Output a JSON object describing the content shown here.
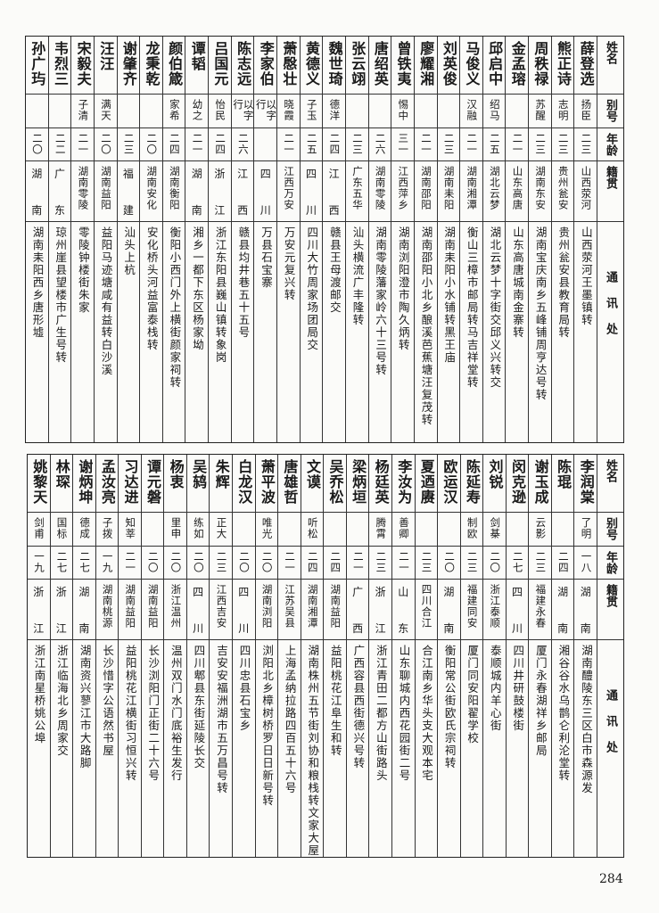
{
  "headers": {
    "name": "姓名",
    "alias": "别号",
    "age": "年龄",
    "native": "籍贯",
    "address": "通讯处"
  },
  "page_number": "284",
  "top_table": [
    {
      "name": "薛登选",
      "alias": "扬臣",
      "age": "二三",
      "native": "山西荥河",
      "address": "山西荥河王墨镇转"
    },
    {
      "name": "熊正诗",
      "alias": "志明",
      "age": "二三",
      "native": "贵州瓮安",
      "address": "贵州瓮安县教育局转"
    },
    {
      "name": "周秩禄",
      "alias": "苏醒",
      "age": "二三",
      "native": "湖南东安",
      "address": "湖南宝庆南乡五峰铺周亨达号转"
    },
    {
      "name": "金孟瑢",
      "alias": "",
      "age": "二一",
      "native": "山东高唐",
      "address": "山东高唐城南金寨转"
    },
    {
      "name": "邱启中",
      "alias": "绍马",
      "age": "二五",
      "native": "湖北云梦",
      "address": "湖北云梦十字街交邱义兴转交"
    },
    {
      "name": "马俊义",
      "alias": "汉融",
      "age": "二一",
      "native": "湖南湘潭",
      "address": "衡山三樟市邮局转马吉祥堂转"
    },
    {
      "name": "刘英俊",
      "alias": "",
      "age": "二三",
      "native": "湖南耒阳",
      "address": "湖南耒阳小水铺转黑王庙"
    },
    {
      "name": "廖耀湘",
      "alias": "",
      "age": "二一",
      "native": "湖南邵阳",
      "address": "湖南邵阳小北乡酿溪芭蕉塘汪复茂转"
    },
    {
      "name": "曾铁夷",
      "alias": "惕中",
      "age": "三一",
      "native": "江西萍乡",
      "address": "湖南浏阳澄市陶久炳转"
    },
    {
      "name": "唐绍英",
      "alias": "",
      "age": "二六",
      "native": "湖南零陵",
      "address": "湖南零陵藩家岭六十三号转"
    },
    {
      "name": "张云翊",
      "alias": "",
      "age": "二三",
      "native": "广东五华",
      "address": "汕头横流广丰隆转"
    },
    {
      "name": "魏世琦",
      "alias": "德洋",
      "age": "二四",
      "native": "江西",
      "address": "赣县王母渡邮交"
    },
    {
      "name": "黄德义",
      "alias": "子玉",
      "age": "二五",
      "native": "四川",
      "address": "四川大竹周家场团局交"
    },
    {
      "name": "萧慇壮",
      "alias": "晓霞",
      "age": "二一",
      "native": "江西万安",
      "address": "万安元复兴转"
    },
    {
      "name": "李家伯",
      "alias": "以字行",
      "age": "",
      "native": "四川",
      "address": "万县石宝寨"
    },
    {
      "name": "陈志远",
      "alias": "以字行",
      "age": "二六",
      "native": "江西",
      "address": "赣县均井巷五十五号"
    },
    {
      "name": "吕国元",
      "alias": "怡民",
      "age": "二四",
      "native": "浙江",
      "address": "浙江东阳县巍山镇转象岗"
    },
    {
      "name": "谭韬",
      "alias": "幼之",
      "age": "二一",
      "native": "湖南",
      "address": "湘乡一都下东区杨家坳"
    },
    {
      "name": "颜伯箴",
      "alias": "家希",
      "age": "二四",
      "native": "湖南衡阳",
      "address": "衡阳小西门外上横街颜家祠转"
    },
    {
      "name": "龙秉乾",
      "alias": "",
      "age": "二〇",
      "native": "湖南安化",
      "address": "安化桥头河益富泰栈转"
    },
    {
      "name": "谢肇齐",
      "alias": "",
      "age": "二三",
      "native": "福建",
      "address": "汕头上杭"
    },
    {
      "name": "汪汪",
      "alias": "满天",
      "age": "二〇",
      "native": "湖南益阳",
      "address": "益阳马迹塘咸有益转白沙溪"
    },
    {
      "name": "宋毅夫",
      "alias": "子清",
      "age": "二一",
      "native": "湖南零陵",
      "address": "零陵钟楼街朱家"
    },
    {
      "name": "韦烈三",
      "alias": "",
      "age": "二二",
      "native": "广东",
      "address": "琼州崖县望楼市广生号转"
    },
    {
      "name": "孙广玙",
      "alias": "",
      "age": "二〇",
      "native": "湖南",
      "address": "湖南耒阳西乡唐形墟"
    }
  ],
  "bottom_table": [
    {
      "name": "李润棠",
      "alias": "了明",
      "age": "一八",
      "native": "湖南",
      "address": "湖南醴陵东三区白市森源发"
    },
    {
      "name": "陈琨",
      "alias": "",
      "age": "二四",
      "native": "湖南",
      "address": "湘谷谷水乌鹊仑利沦堂转"
    },
    {
      "name": "谢玉成",
      "alias": "云影",
      "age": "二三",
      "native": "福建永春",
      "address": "厦门永春湖祥乡邮局"
    },
    {
      "name": "闵克逊",
      "alias": "",
      "age": "二七",
      "native": "四川",
      "address": "四川井研鼓楼街"
    },
    {
      "name": "刘锐",
      "alias": "剑棊",
      "age": "二〇",
      "native": "浙江泰顺",
      "address": "泰顺城内羊心街"
    },
    {
      "name": "陈延寿",
      "alias": "制欧",
      "age": "二三",
      "native": "福建同安",
      "address": "厦门同安阳翟学校"
    },
    {
      "name": "欧运汉",
      "alias": "",
      "age": "二〇",
      "native": "湖南",
      "address": "衡阳常公街欧氏宗祠转"
    },
    {
      "name": "夏迺赓",
      "alias": "",
      "age": "二三",
      "native": "四川合江",
      "address": "合江南乡华头支大观本宅"
    },
    {
      "name": "李汝为",
      "alias": "善卿",
      "age": "二一",
      "native": "山东",
      "address": "山东聊城内西花园街二号"
    },
    {
      "name": "杨廷英",
      "alias": "腾霄",
      "age": "二三",
      "native": "浙江",
      "address": "浙江青田二都方山街路头"
    },
    {
      "name": "梁炳垣",
      "alias": "",
      "age": "二一",
      "native": "广西",
      "address": "广西容县西街德兴号转"
    },
    {
      "name": "吴乔松",
      "alias": "",
      "age": "二四",
      "native": "湖南益阳",
      "address": "益阳桃花江阜生和转"
    },
    {
      "name": "文谟",
      "alias": "听松",
      "age": "二四",
      "native": "湖南湘潭",
      "address": "湖南株州五节街刘协和粮栈转文家大屋"
    },
    {
      "name": "唐雄哲",
      "alias": "",
      "age": "二一",
      "native": "江苏吴县",
      "address": "上海孟纳拉路四百五十六号"
    },
    {
      "name": "萧平波",
      "alias": "唯光",
      "age": "二〇",
      "native": "湖南浏阳",
      "address": "浏阳北乡樟树桥罗日日新号转"
    },
    {
      "name": "白龙汉",
      "alias": "",
      "age": "二〇",
      "native": "四川",
      "address": "四川忠县石宝乡"
    },
    {
      "name": "朱辉",
      "alias": "正大",
      "age": "二三",
      "native": "江西吉安",
      "address": "吉安安福洲湖市五万昌号转"
    },
    {
      "name": "吴鸫",
      "alias": "练如",
      "age": "二〇",
      "native": "四川",
      "address": "四川郫县东街延陵长交"
    },
    {
      "name": "杨衷",
      "alias": "里申",
      "age": "二〇",
      "native": "浙江温州",
      "address": "温州双门水门底裕生发行"
    },
    {
      "name": "谭元磐",
      "alias": "",
      "age": "二〇",
      "native": "湖南益阳",
      "address": "长沙浏阳门正街二十六号"
    },
    {
      "name": "习达进",
      "alias": "知莘",
      "age": "二一",
      "native": "湖南益阳",
      "address": "益阳桃花江横街习恒兴转"
    },
    {
      "name": "孟汝亮",
      "alias": "子拨",
      "age": "一九",
      "native": "湖南桃源",
      "address": "长沙惜字公语然书屋"
    },
    {
      "name": "谢炳坤",
      "alias": "德成",
      "age": "二七",
      "native": "湖南",
      "address": "湖南资兴蓼江市大路脚"
    },
    {
      "name": "林琛",
      "alias": "国标",
      "age": "二七",
      "native": "浙江",
      "address": "浙江临海北乡周家交"
    },
    {
      "name": "姚黎天",
      "alias": "剑甫",
      "age": "一九",
      "native": "浙江",
      "address": "浙江南星桥姚公埠"
    }
  ]
}
